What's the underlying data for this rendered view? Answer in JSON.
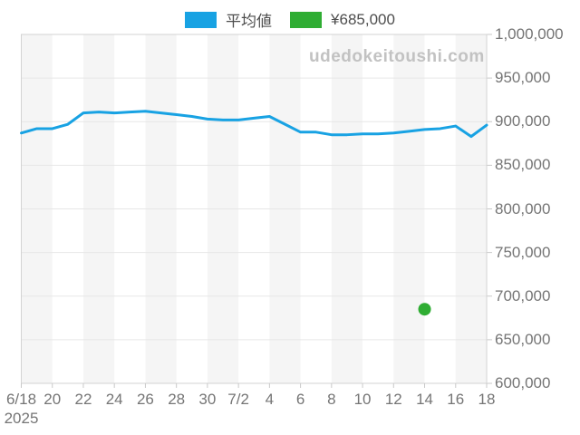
{
  "legend": {
    "series1_label": "平均値",
    "series2_label": "¥685,000"
  },
  "watermark": "udedokeitoushi.com",
  "colors": {
    "line": "#18a2e3",
    "point": "#2fad33",
    "stripe": "#f5f5f5",
    "grid": "#e7e7e7",
    "border": "#d3d3d3",
    "tick": "#c9c9c9",
    "axis_text": "#757575",
    "legend_text": "#4d4d4d",
    "watermark_text": "#c2c2c2",
    "background": "#ffffff"
  },
  "chart_data": {
    "type": "line",
    "title": "",
    "xlabel": "",
    "ylabel": "",
    "x": [
      "6/18",
      "6/19",
      "6/20",
      "6/21",
      "6/22",
      "6/23",
      "6/24",
      "6/25",
      "6/26",
      "6/27",
      "6/28",
      "6/29",
      "6/30",
      "7/1",
      "7/2",
      "7/3",
      "7/4",
      "7/5",
      "7/6",
      "7/7",
      "7/8",
      "7/9",
      "7/10",
      "7/11",
      "7/12",
      "7/13",
      "7/14",
      "7/15",
      "7/16",
      "7/17",
      "7/18"
    ],
    "series": [
      {
        "name": "平均値",
        "type": "line",
        "color": "#18a2e3",
        "values": [
          887000,
          892000,
          892000,
          897000,
          910000,
          911000,
          910000,
          911000,
          912000,
          910000,
          908000,
          906000,
          903000,
          902000,
          902000,
          904000,
          906000,
          897000,
          888000,
          888000,
          885000,
          885000,
          886000,
          886000,
          887000,
          889000,
          891000,
          892000,
          895000,
          883000,
          896000
        ]
      },
      {
        "name": "¥685,000",
        "type": "scatter",
        "color": "#2fad33",
        "points": [
          {
            "x": "7/14",
            "y": 685000
          }
        ]
      }
    ],
    "x_tick_labels": [
      "6/18",
      "20",
      "22",
      "24",
      "26",
      "28",
      "30",
      "7/2",
      "4",
      "6",
      "8",
      "10",
      "12",
      "14",
      "16",
      "18"
    ],
    "x_tick_sub_label": {
      "tick_index": 0,
      "text": "2025"
    },
    "y_ticks": [
      1000000,
      950000,
      900000,
      850000,
      800000,
      750000,
      700000,
      650000,
      600000
    ],
    "y_tick_labels": [
      "1,000,000",
      "950,000",
      "900,000",
      "850,000",
      "800,000",
      "750,000",
      "700,000",
      "650,000",
      "600,000"
    ],
    "ylim": [
      600000,
      1000000
    ],
    "grid": "horizontal",
    "legend_position": "top",
    "plot_background": "alternating-vertical-bands"
  }
}
